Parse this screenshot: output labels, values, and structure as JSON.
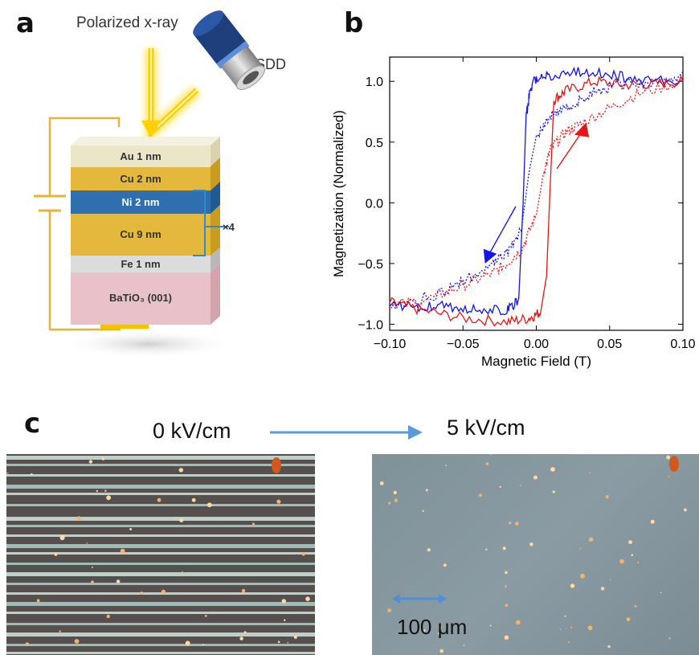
{
  "panels": {
    "a": "a",
    "b": "b",
    "c": "c"
  },
  "panel_a": {
    "xray_label": "Polarized x-ray",
    "detector_label": "SDD",
    "repeat_label": "×4",
    "layers": [
      {
        "label": "Au 1 nm",
        "color": "#e9e4c6"
      },
      {
        "label": "Cu 2 nm",
        "color": "#e3b83c"
      },
      {
        "label": "Ni 2 nm",
        "color": "#2f6fb0"
      },
      {
        "label": "Cu 9 nm",
        "color": "#e3b83c"
      },
      {
        "label": "Fe 1 nm",
        "color": "#d6d6d6"
      },
      {
        "label": "BaTiO₃ (001)",
        "color": "#e8c2c8"
      }
    ]
  },
  "chart_data": {
    "type": "line",
    "xlabel": "Magnetic Field (T)",
    "ylabel": "Magnetization (Normalized)",
    "xlim": [
      -0.1,
      0.1
    ],
    "ylim": [
      -1.05,
      1.2
    ],
    "xticks": [
      -0.1,
      -0.05,
      0.0,
      0.05,
      0.1
    ],
    "xtick_labels": [
      "−0.10",
      "−0.05",
      "0.00",
      "0.05",
      "0.10"
    ],
    "yticks": [
      -1.0,
      -0.5,
      0.0,
      0.5,
      1.0
    ],
    "ytick_labels": [
      "−1.0",
      "−0.5",
      "0.0",
      "0.5",
      "1.0"
    ],
    "grid": false,
    "colors": {
      "blue": "#1515e6",
      "red": "#e61515"
    },
    "series": [
      {
        "color": "blue",
        "style": "solid",
        "sweep": "down",
        "x": [
          0.1,
          0.07,
          0.05,
          0.03,
          0.01,
          0.0,
          -0.004,
          -0.007,
          -0.009,
          -0.012,
          -0.02,
          -0.04,
          -0.06,
          -0.08,
          -0.1
        ],
        "y": [
          1.0,
          1.02,
          1.05,
          1.08,
          1.05,
          1.02,
          0.95,
          0.7,
          0.0,
          -0.8,
          -0.88,
          -0.87,
          -0.85,
          -0.85,
          -0.85
        ]
      },
      {
        "color": "red",
        "style": "solid",
        "sweep": "up",
        "x": [
          -0.1,
          -0.08,
          -0.05,
          -0.02,
          -0.005,
          0.003,
          0.007,
          0.009,
          0.012,
          0.02,
          0.04,
          0.06,
          0.08,
          0.1
        ],
        "y": [
          -0.82,
          -0.88,
          -0.95,
          -0.98,
          -0.95,
          -0.9,
          -0.6,
          0.0,
          0.85,
          0.92,
          1.0,
          0.97,
          0.98,
          1.0
        ]
      },
      {
        "color": "blue",
        "style": "dotted",
        "sweep": "down",
        "x": [
          0.1,
          0.08,
          0.06,
          0.04,
          0.03,
          0.02,
          0.01,
          0.0,
          -0.005,
          -0.01,
          -0.02,
          -0.03,
          -0.05,
          -0.07,
          -0.1
        ],
        "y": [
          1.05,
          1.0,
          0.98,
          0.92,
          0.85,
          0.78,
          0.72,
          0.55,
          0.25,
          -0.2,
          -0.42,
          -0.5,
          -0.65,
          -0.76,
          -0.85
        ]
      },
      {
        "color": "red",
        "style": "dotted",
        "sweep": "up",
        "x": [
          -0.1,
          -0.07,
          -0.05,
          -0.03,
          -0.02,
          -0.01,
          0.0,
          0.005,
          0.01,
          0.02,
          0.03,
          0.05,
          0.07,
          0.1
        ],
        "y": [
          -0.85,
          -0.78,
          -0.68,
          -0.58,
          -0.5,
          -0.38,
          -0.1,
          0.25,
          0.45,
          0.58,
          0.65,
          0.78,
          0.9,
          1.0
        ]
      }
    ]
  },
  "panel_c": {
    "left_field": "0 kV/cm",
    "right_field": "5 kV/cm",
    "scale_label": "100 μm",
    "colors": {
      "arrow": "#5b9bd5",
      "scale": "#4f8fd6"
    }
  }
}
